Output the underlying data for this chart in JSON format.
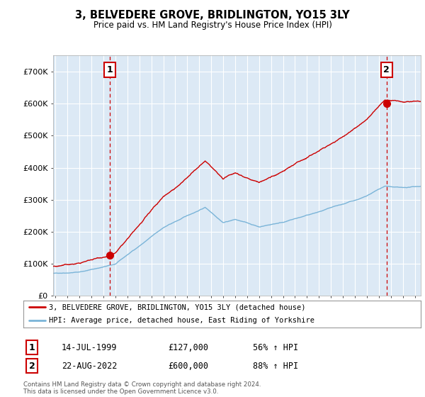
{
  "title": "3, BELVEDERE GROVE, BRIDLINGTON, YO15 3LY",
  "subtitle": "Price paid vs. HM Land Registry's House Price Index (HPI)",
  "legend_line1": "3, BELVEDERE GROVE, BRIDLINGTON, YO15 3LY (detached house)",
  "legend_line2": "HPI: Average price, detached house, East Riding of Yorkshire",
  "annotation1_label": "1",
  "annotation1_date": "14-JUL-1999",
  "annotation1_price": "£127,000",
  "annotation1_hpi": "56% ↑ HPI",
  "annotation1_year": 1999.54,
  "annotation1_value": 127000,
  "annotation2_label": "2",
  "annotation2_date": "22-AUG-2022",
  "annotation2_price": "£600,000",
  "annotation2_hpi": "88% ↑ HPI",
  "annotation2_year": 2022.64,
  "annotation2_value": 600000,
  "hpi_color": "#7ab4d8",
  "price_color": "#cc0000",
  "dashed_color": "#cc0000",
  "footer": "Contains HM Land Registry data © Crown copyright and database right 2024.\nThis data is licensed under the Open Government Licence v3.0.",
  "ylim": [
    0,
    750000
  ],
  "yticks": [
    0,
    100000,
    200000,
    300000,
    400000,
    500000,
    600000,
    700000
  ],
  "xlim_start": 1994.8,
  "xlim_end": 2025.5,
  "chart_bg": "#dce9f5",
  "background_color": "#ffffff",
  "grid_color": "#ffffff"
}
